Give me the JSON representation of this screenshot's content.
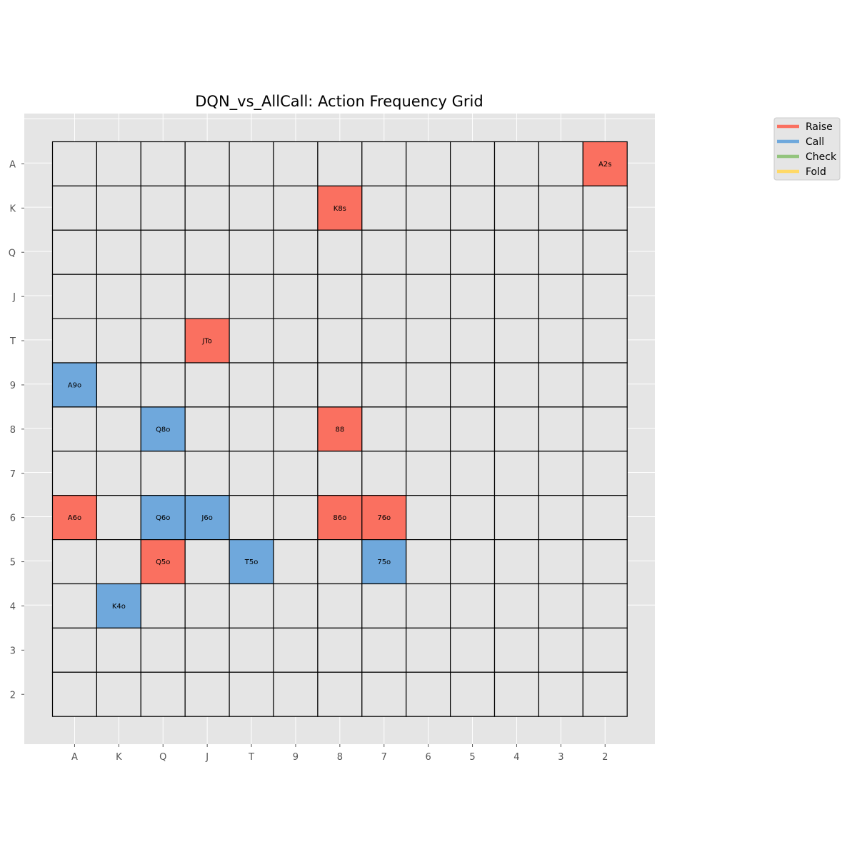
{
  "chart_data": {
    "type": "heatmap",
    "title": "DQN_vs_AllCall: Action Frequency Grid",
    "x_ticks": [
      "A",
      "K",
      "Q",
      "J",
      "T",
      "9",
      "8",
      "7",
      "6",
      "5",
      "4",
      "3",
      "2"
    ],
    "y_ticks": [
      "A",
      "K",
      "Q",
      "J",
      "T",
      "9",
      "8",
      "7",
      "6",
      "5",
      "4",
      "3",
      "2"
    ],
    "legend": {
      "placement": "upper-right-outside",
      "entries": [
        {
          "label": "Raise",
          "color": "#fa7060"
        },
        {
          "label": "Call",
          "color": "#6fa8dc"
        },
        {
          "label": "Check",
          "color": "#93c47d"
        },
        {
          "label": "Fold",
          "color": "#ffd966"
        }
      ]
    },
    "cells": [
      {
        "row": "A",
        "col": "2",
        "label": "A2s",
        "action": "Raise"
      },
      {
        "row": "K",
        "col": "8",
        "label": "K8s",
        "action": "Raise"
      },
      {
        "row": "T",
        "col": "J",
        "label": "JTo",
        "action": "Raise"
      },
      {
        "row": "9",
        "col": "A",
        "label": "A9o",
        "action": "Call"
      },
      {
        "row": "8",
        "col": "Q",
        "label": "Q8o",
        "action": "Call"
      },
      {
        "row": "8",
        "col": "8",
        "label": "88",
        "action": "Raise"
      },
      {
        "row": "6",
        "col": "A",
        "label": "A6o",
        "action": "Raise"
      },
      {
        "row": "6",
        "col": "Q",
        "label": "Q6o",
        "action": "Call"
      },
      {
        "row": "6",
        "col": "J",
        "label": "J6o",
        "action": "Call"
      },
      {
        "row": "6",
        "col": "8",
        "label": "86o",
        "action": "Raise"
      },
      {
        "row": "6",
        "col": "7",
        "label": "76o",
        "action": "Raise"
      },
      {
        "row": "5",
        "col": "Q",
        "label": "Q5o",
        "action": "Raise"
      },
      {
        "row": "5",
        "col": "T",
        "label": "T5o",
        "action": "Call"
      },
      {
        "row": "5",
        "col": "7",
        "label": "75o",
        "action": "Call"
      },
      {
        "row": "4",
        "col": "K",
        "label": "K4o",
        "action": "Call"
      }
    ],
    "empty_cell_color": "#e5e5e5",
    "grid": true
  }
}
